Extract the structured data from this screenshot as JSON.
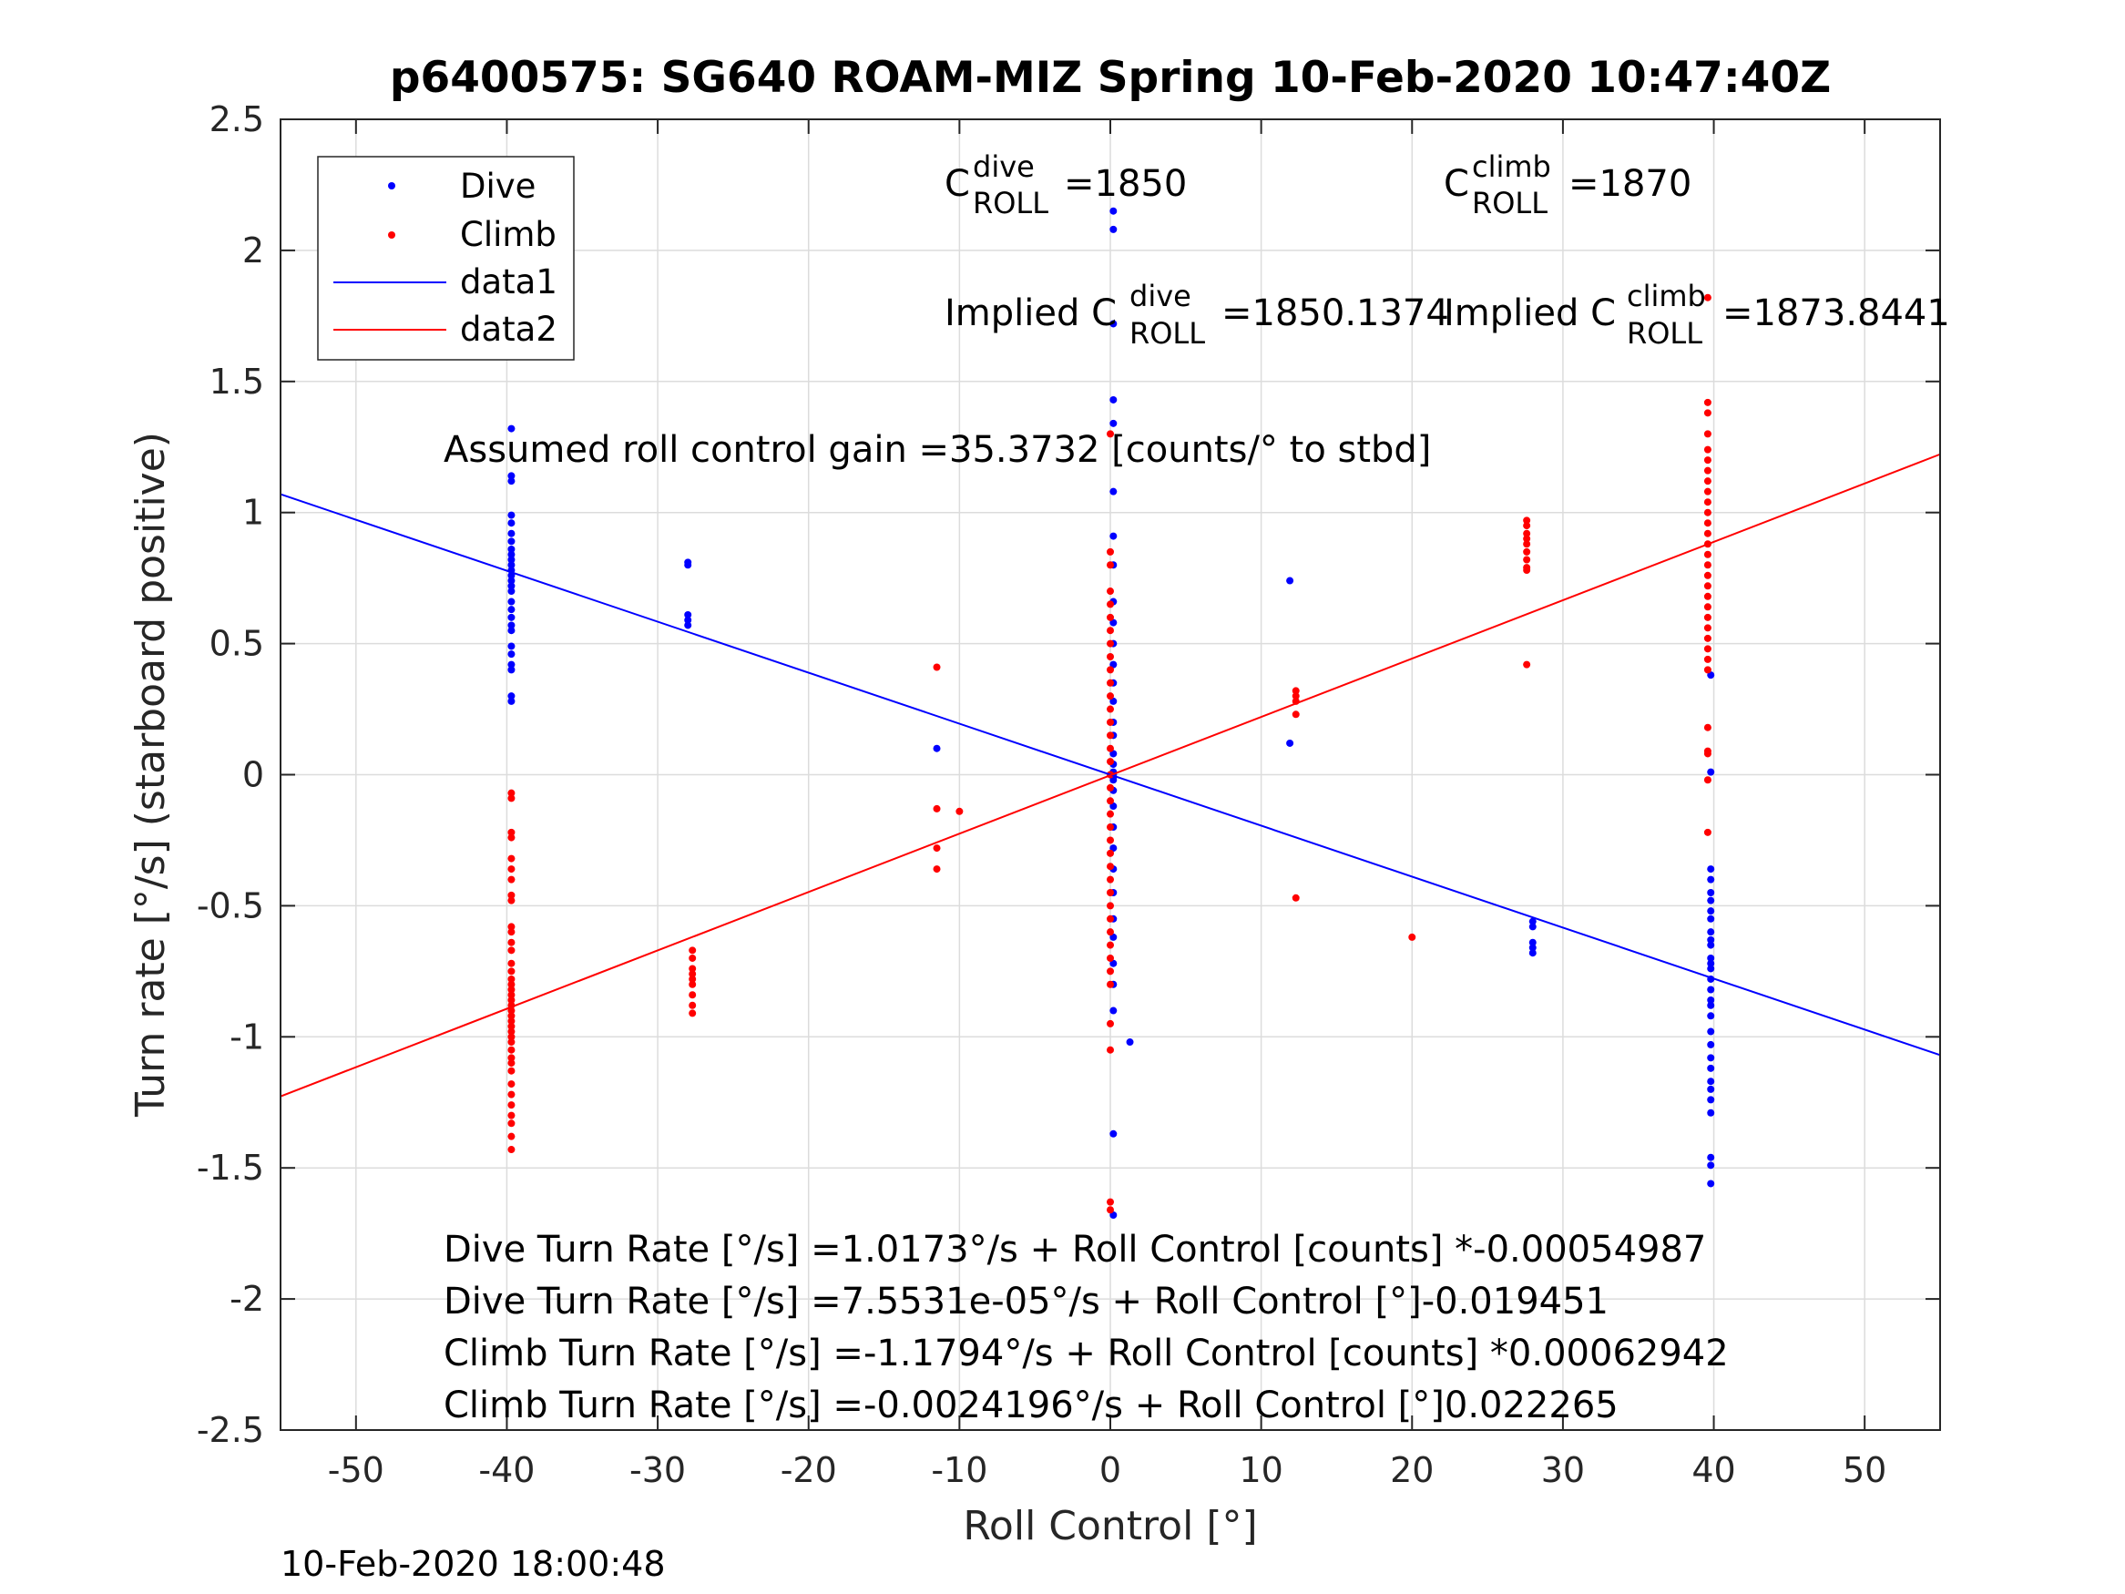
{
  "chart_data": {
    "type": "scatter",
    "title": "p6400575: SG640 ROAM-MIZ Spring 10-Feb-2020 10:47:40Z",
    "xlabel": "Roll Control [°]",
    "ylabel": "Turn rate [°/s] (starboard positive)",
    "xlim": [
      -55,
      55
    ],
    "ylim": [
      -2.5,
      2.5
    ],
    "xticks": [
      -50,
      -40,
      -30,
      -20,
      -10,
      0,
      10,
      20,
      30,
      40,
      50
    ],
    "yticks": [
      -2.5,
      -2,
      -1.5,
      -1,
      -0.5,
      0,
      0.5,
      1,
      1.5,
      2,
      2.5
    ],
    "grid": true,
    "legend_position": "top-left",
    "timestamp": "10-Feb-2020 18:00:48",
    "colors": {
      "dive": "#0000ff",
      "climb": "#ff0000"
    },
    "legend": [
      {
        "label": "Dive",
        "kind": "marker",
        "color": "#0000ff"
      },
      {
        "label": "Climb",
        "kind": "marker",
        "color": "#ff0000"
      },
      {
        "label": "data1",
        "kind": "line",
        "color": "#0000ff"
      },
      {
        "label": "data2",
        "kind": "line",
        "color": "#ff0000"
      }
    ],
    "annotations": {
      "c_dive": {
        "base": "C",
        "sup": "dive",
        "sub": "ROLL",
        "value": "=1850"
      },
      "c_climb": {
        "base": "C",
        "sup": "climb",
        "sub": "ROLL",
        "value": "=1870"
      },
      "implied_dive": {
        "prefix": "Implied C",
        "sup": "dive",
        "sub": "ROLL",
        "value": "=1850.1374"
      },
      "implied_climb": {
        "prefix": "Implied C",
        "sup": "climb",
        "sub": "ROLL",
        "value": "=1873.8441"
      },
      "gain": "Assumed roll control gain =35.3732 [counts/° to stbd]",
      "equations": [
        "Dive Turn Rate [°/s] =1.0173°/s + Roll Control [counts] *-0.00054987",
        "Dive Turn Rate [°/s] =7.5531e-05°/s + Roll Control [°]-0.019451",
        "Climb Turn Rate [°/s] =-1.1794°/s + Roll Control [counts] *0.00062942",
        "Climb Turn Rate [°/s] =-0.0024196°/s + Roll Control [°]0.022265"
      ]
    },
    "fit_lines": [
      {
        "name": "data1",
        "color": "#0000ff",
        "x": [
          -55,
          55
        ],
        "y": [
          1.0698,
          -1.0697
        ]
      },
      {
        "name": "data2",
        "color": "#ff0000",
        "x": [
          -55,
          55
        ],
        "y": [
          -1.227,
          1.2222
        ]
      }
    ],
    "series": [
      {
        "name": "Dive",
        "color": "#0000ff",
        "clusters": [
          {
            "x": -39.7,
            "y": [
              1.32,
              1.14,
              1.12,
              0.99,
              0.96,
              0.92,
              0.89,
              0.86,
              0.84,
              0.82,
              0.8,
              0.78,
              0.76,
              0.74,
              0.72,
              0.7,
              0.66,
              0.63,
              0.6,
              0.57,
              0.55,
              0.49,
              0.46,
              0.42,
              0.4,
              0.3,
              0.28
            ]
          },
          {
            "x": -28.0,
            "y": [
              0.81,
              0.8,
              0.61,
              0.59,
              0.57
            ]
          },
          {
            "x": -11.5,
            "y": [
              0.1
            ]
          },
          {
            "x": 0.2,
            "y": [
              2.15,
              2.08,
              1.72,
              1.43,
              1.34,
              1.08,
              0.91,
              0.8,
              0.66,
              0.58,
              0.5,
              0.42,
              0.35,
              0.28,
              0.2,
              0.15,
              0.08,
              0.04,
              0.01,
              0.0,
              -0.01,
              -0.02,
              -0.06,
              -0.12,
              -0.2,
              -0.28,
              -0.36,
              -0.45,
              -0.55,
              -0.62,
              -0.72,
              -0.8,
              -0.9,
              -1.37,
              -1.68
            ]
          },
          {
            "x": 1.3,
            "y": [
              -1.02
            ]
          },
          {
            "x": 11.9,
            "y": [
              0.74,
              0.12
            ]
          },
          {
            "x": 28.0,
            "y": [
              -0.56,
              -0.58,
              -0.64,
              -0.66,
              -0.68
            ]
          },
          {
            "x": 39.8,
            "y": [
              0.38,
              0.01,
              -0.36,
              -0.4,
              -0.45,
              -0.48,
              -0.52,
              -0.55,
              -0.6,
              -0.63,
              -0.65,
              -0.7,
              -0.72,
              -0.74,
              -0.78,
              -0.82,
              -0.86,
              -0.88,
              -0.92,
              -0.98,
              -1.03,
              -1.08,
              -1.12,
              -1.17,
              -1.2,
              -1.24,
              -1.29,
              -1.46,
              -1.49,
              -1.56
            ]
          }
        ]
      },
      {
        "name": "Climb",
        "color": "#ff0000",
        "clusters": [
          {
            "x": -39.7,
            "y": [
              -0.07,
              -0.09,
              -0.22,
              -0.24,
              -0.32,
              -0.36,
              -0.4,
              -0.46,
              -0.48,
              -0.58,
              -0.6,
              -0.64,
              -0.67,
              -0.72,
              -0.75,
              -0.78,
              -0.8,
              -0.82,
              -0.84,
              -0.86,
              -0.88,
              -0.9,
              -0.92,
              -0.94,
              -0.96,
              -0.98,
              -1.0,
              -1.02,
              -1.05,
              -1.08,
              -1.1,
              -1.13,
              -1.18,
              -1.22,
              -1.26,
              -1.3,
              -1.33,
              -1.38,
              -1.43
            ]
          },
          {
            "x": -27.7,
            "y": [
              -0.67,
              -0.7,
              -0.74,
              -0.76,
              -0.78,
              -0.8,
              -0.84,
              -0.88,
              -0.91
            ]
          },
          {
            "x": -11.5,
            "y": [
              0.41,
              -0.13,
              -0.28,
              -0.36
            ]
          },
          {
            "x": -10.0,
            "y": [
              -0.14
            ]
          },
          {
            "x": 0.0,
            "y": [
              1.3,
              0.85,
              0.8,
              0.7,
              0.65,
              0.6,
              0.55,
              0.5,
              0.45,
              0.4,
              0.35,
              0.3,
              0.25,
              0.2,
              0.15,
              0.1,
              0.05,
              0.0,
              -0.05,
              -0.1,
              -0.15,
              -0.2,
              -0.25,
              -0.3,
              -0.35,
              -0.4,
              -0.45,
              -0.5,
              -0.55,
              -0.6,
              -0.65,
              -0.7,
              -0.75,
              -0.8,
              -0.95,
              -1.05,
              -1.63,
              -1.66
            ]
          },
          {
            "x": 12.3,
            "y": [
              0.32,
              0.3,
              0.28,
              0.23,
              -0.47
            ]
          },
          {
            "x": 20.0,
            "y": [
              -0.62
            ]
          },
          {
            "x": 27.6,
            "y": [
              0.97,
              0.95,
              0.92,
              0.9,
              0.88,
              0.85,
              0.82,
              0.79,
              0.78,
              0.42
            ]
          },
          {
            "x": 39.6,
            "y": [
              1.82,
              1.42,
              1.38,
              1.3,
              1.24,
              1.2,
              1.16,
              1.12,
              1.08,
              1.04,
              1.0,
              0.96,
              0.92,
              0.88,
              0.84,
              0.8,
              0.76,
              0.72,
              0.68,
              0.64,
              0.6,
              0.56,
              0.52,
              0.48,
              0.44,
              0.4,
              0.18,
              0.09,
              0.08,
              -0.02,
              -0.22
            ]
          }
        ]
      }
    ]
  }
}
